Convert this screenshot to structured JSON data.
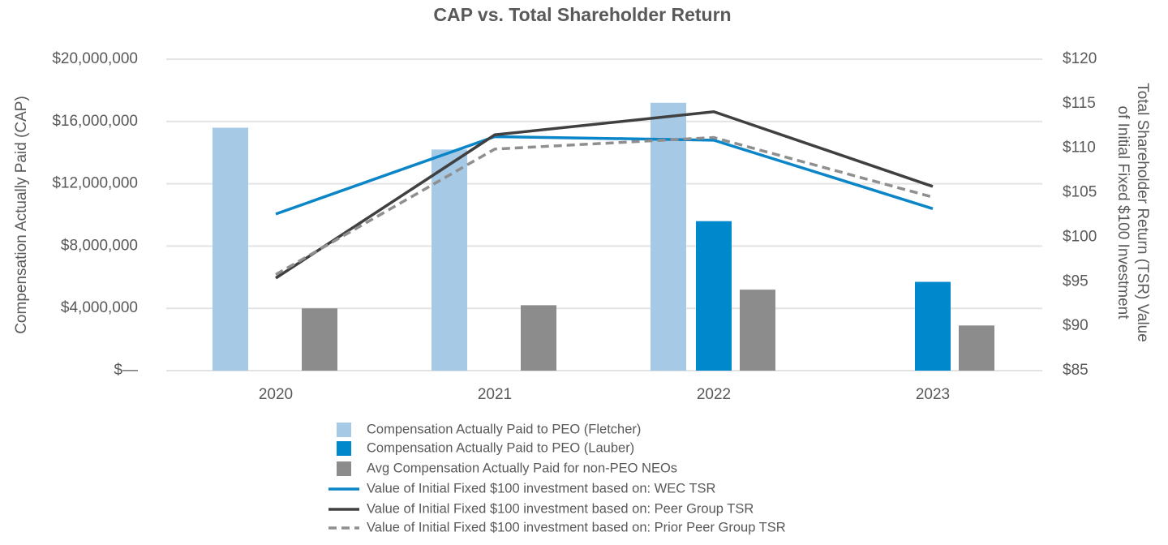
{
  "chart_data": {
    "type": "bar",
    "title": "CAP vs. Total Shareholder Return",
    "ylabel": "Compensation Actually Paid (CAP)",
    "y2label": [
      "Total Shareholder Return (TSR) Value",
      "of Initial Fixed $100 Investment"
    ],
    "categories": [
      "2020",
      "2021",
      "2022",
      "2023"
    ],
    "ylim": [
      0,
      20000000
    ],
    "yticks": [
      {
        "value": 0,
        "label": "$—"
      },
      {
        "value": 4000000,
        "label": "$4,000,000"
      },
      {
        "value": 8000000,
        "label": "$8,000,000"
      },
      {
        "value": 12000000,
        "label": "$12,000,000"
      },
      {
        "value": 16000000,
        "label": "$16,000,000"
      },
      {
        "value": 20000000,
        "label": "$20,000,000"
      }
    ],
    "y2lim": [
      85,
      120
    ],
    "y2ticks": [
      {
        "value": 85,
        "label": "$85"
      },
      {
        "value": 90,
        "label": "$90"
      },
      {
        "value": 95,
        "label": "$95"
      },
      {
        "value": 100,
        "label": "$100"
      },
      {
        "value": 105,
        "label": "$105"
      },
      {
        "value": 110,
        "label": "$110"
      },
      {
        "value": 115,
        "label": "$115"
      },
      {
        "value": 120,
        "label": "$120"
      }
    ],
    "grid": true,
    "series": [
      {
        "name": "Compensation Actually Paid to PEO (Fletcher)",
        "type": "bar",
        "color": "#a6c9e6",
        "values": [
          15600000,
          14200000,
          17200000,
          null
        ]
      },
      {
        "name": "Compensation Actually Paid to PEO (Lauber)",
        "type": "bar",
        "color": "#0088cc",
        "values": [
          null,
          null,
          9600000,
          5700000
        ]
      },
      {
        "name": "Avg Compensation Actually Paid for non-PEO NEOs",
        "type": "bar",
        "color": "#8c8c8c",
        "values": [
          4000000,
          4200000,
          5200000,
          2900000
        ]
      },
      {
        "name": "Value of Initial Fixed $100 investment based on: WEC TSR",
        "type": "line",
        "axis": "y2",
        "color": "#0a85c7",
        "values": [
          102.6,
          111.3,
          110.9,
          103.2
        ]
      },
      {
        "name": "Value of Initial Fixed $100 investment based on: Peer Group TSR",
        "type": "line",
        "axis": "y2",
        "color": "#404040",
        "values": [
          95.4,
          111.5,
          114.1,
          105.7
        ]
      },
      {
        "name": "Value of Initial Fixed $100 investment based on: Prior Peer Group TSR",
        "type": "line",
        "axis": "y2",
        "color": "#8f8f8f",
        "dashed": true,
        "values": [
          95.8,
          109.9,
          111.2,
          104.5
        ]
      }
    ]
  }
}
